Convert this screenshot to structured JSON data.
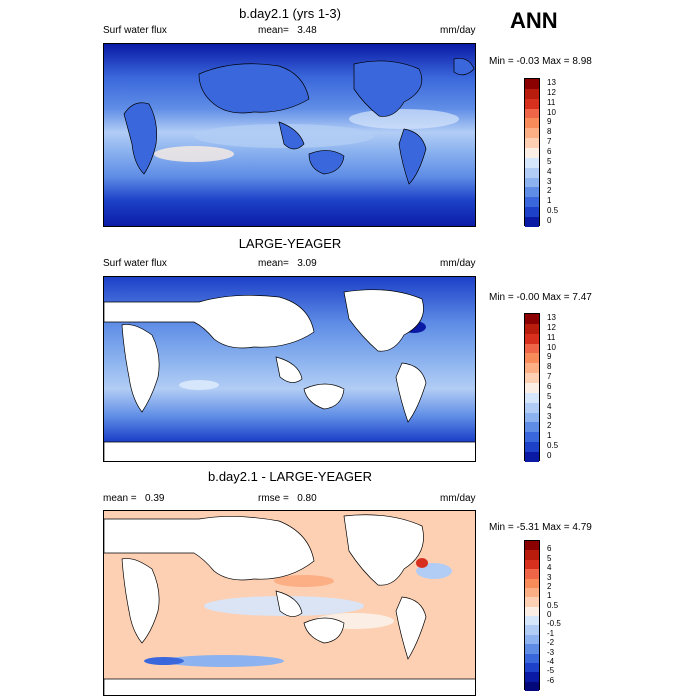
{
  "season": "ANN",
  "panels": [
    {
      "title": "b.day2.1 (yrs 1-3)",
      "left_label": "Surf water flux",
      "mean_label": "mean=",
      "mean_value": "3.48",
      "units": "mm/day",
      "minmax": "Min = -0.03 Max = 8.98",
      "levels": [
        "13",
        "12",
        "11",
        "10",
        "9",
        "8",
        "7",
        "6",
        "5",
        "4",
        "3",
        "2",
        "1",
        "0.5",
        "0"
      ],
      "colors": [
        "#8b0000",
        "#b71c0c",
        "#d7301f",
        "#ef6548",
        "#f88b5a",
        "#fcae85",
        "#fdd0b3",
        "#fbeee4",
        "#d6e6fb",
        "#b2cdf5",
        "#8cb3ef",
        "#5f8de6",
        "#3a67db",
        "#1d41c8",
        "#0a1aa5"
      ]
    },
    {
      "title": "LARGE-YEAGER",
      "left_label": "Surf water flux",
      "mean_label": "mean=",
      "mean_value": "3.09",
      "units": "mm/day",
      "minmax": "Min = -0.00 Max = 7.47",
      "levels": [
        "13",
        "12",
        "11",
        "10",
        "9",
        "8",
        "7",
        "6",
        "5",
        "4",
        "3",
        "2",
        "1",
        "0.5",
        "0"
      ],
      "colors": [
        "#8b0000",
        "#b71c0c",
        "#d7301f",
        "#ef6548",
        "#f88b5a",
        "#fcae85",
        "#fdd0b3",
        "#fbeee4",
        "#d6e6fb",
        "#b2cdf5",
        "#8cb3ef",
        "#5f8de6",
        "#3a67db",
        "#1d41c8",
        "#0a1aa5"
      ]
    },
    {
      "title": "b.day2.1 - LARGE-YEAGER",
      "mean_label": "mean =",
      "mean_value": "0.39",
      "rmse_label": "rmse =",
      "rmse_value": "0.80",
      "units": "mm/day",
      "minmax": "Min = -5.31 Max = 4.79",
      "levels": [
        "6",
        "5",
        "4",
        "3",
        "2",
        "1",
        "0.5",
        "0",
        "-0.5",
        "-1",
        "-2",
        "-3",
        "-4",
        "-5",
        "-6"
      ],
      "colors": [
        "#8b0000",
        "#b71c0c",
        "#d7301f",
        "#ef6548",
        "#f88b5a",
        "#fcae85",
        "#fdd0b3",
        "#fbeee4",
        "#d6e6fb",
        "#b2cdf5",
        "#8cb3ef",
        "#5f8de6",
        "#3a67db",
        "#1d41c8",
        "#0a1aa5",
        "#05087a"
      ]
    }
  ]
}
